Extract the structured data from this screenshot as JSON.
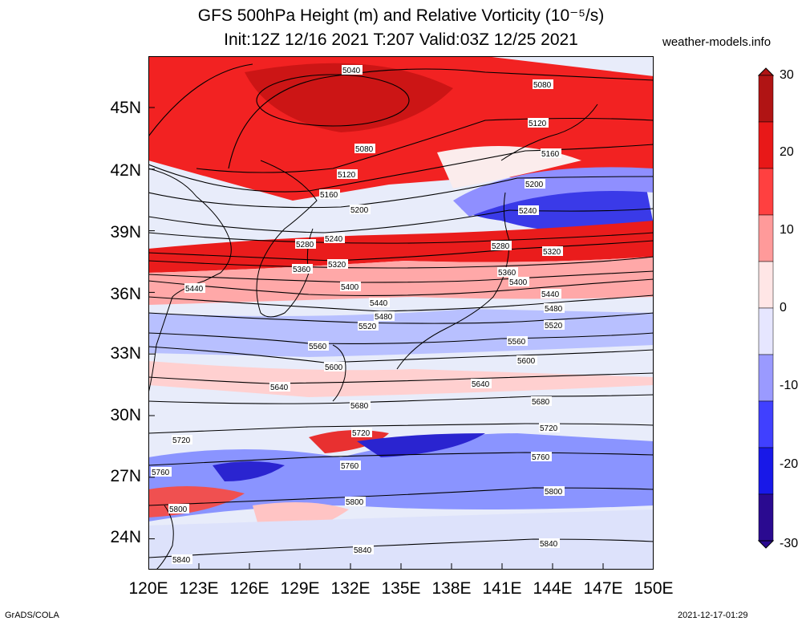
{
  "title": {
    "line1": "GFS 500hPa Height (m) and Relative Vorticity (10⁻⁵/s)",
    "line2": "Init:12Z 12/16 2021 T:207 Valid:03Z 12/25 2021"
  },
  "site": "weather-models.info",
  "footer": {
    "left": "GrADS/COLA",
    "right": "2021-12-17-01:29"
  },
  "map": {
    "lon_range": [
      120,
      150
    ],
    "lat_range": [
      22.5,
      47.5
    ],
    "lat_labels": [
      "45N",
      "42N",
      "39N",
      "36N",
      "33N",
      "30N",
      "27N",
      "24N"
    ],
    "lon_labels": [
      "120E",
      "123E",
      "126E",
      "129E",
      "132E",
      "135E",
      "138E",
      "141E",
      "144E",
      "147E",
      "150E"
    ],
    "contour_labels": [
      "5040",
      "5080",
      "5080",
      "5120",
      "5120",
      "5160",
      "5160",
      "5200",
      "5200",
      "5240",
      "5240",
      "5280",
      "5280",
      "5320",
      "5320",
      "5360",
      "5360",
      "5400",
      "5400",
      "5440",
      "5440",
      "5440",
      "5480",
      "5480",
      "5520",
      "5520",
      "5560",
      "5560",
      "5600",
      "5600",
      "5640",
      "5640",
      "5680",
      "5680",
      "5720",
      "5720",
      "5720",
      "5760",
      "5760",
      "5760",
      "5800",
      "5800",
      "5800",
      "5840",
      "5840",
      "5840"
    ],
    "vorticity_colors": {
      "strong_pos": "#c81414",
      "pos": "#ff2020",
      "weak_pos": "#ffc8c8",
      "zero": "#ffffff",
      "weak_neg": "#c8c8ff",
      "neg": "#2020ff",
      "strong_neg": "#1a0a90"
    }
  },
  "colorbar": {
    "ticks": [
      "30",
      "20",
      "10",
      "0",
      "-10",
      "-20",
      "-30"
    ],
    "colors": [
      "#b01414",
      "#e81818",
      "#ff4040",
      "#ff9a9a",
      "#ffe6e6",
      "#e6e6ff",
      "#9a9aff",
      "#4040ff",
      "#1818e8",
      "#2a0a90"
    ]
  }
}
